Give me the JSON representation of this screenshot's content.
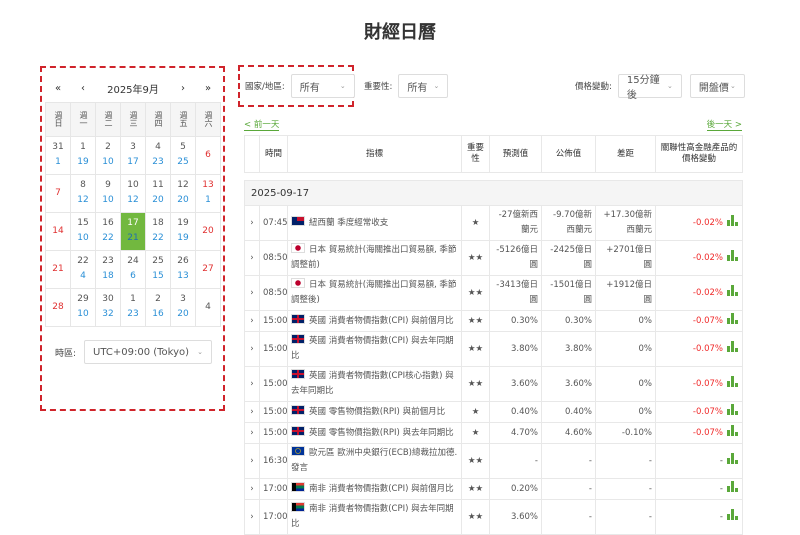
{
  "page_title": "財經日曆",
  "calendar": {
    "nav": {
      "prev_year": "«",
      "prev_month": "‹",
      "month_label": "2025年9月",
      "next_month": "›",
      "next_year": "»"
    },
    "weekdays": [
      "週日",
      "週一",
      "週二",
      "週三",
      "週四",
      "週五",
      "週六"
    ],
    "weeks": [
      [
        {
          "d": "31",
          "c": "1"
        },
        {
          "d": "1",
          "c": "19"
        },
        {
          "d": "2",
          "c": "10"
        },
        {
          "d": "3",
          "c": "17"
        },
        {
          "d": "4",
          "c": "23"
        },
        {
          "d": "5",
          "c": "25"
        },
        {
          "d": "6",
          "c": "",
          "weekend": true
        }
      ],
      [
        {
          "d": "7",
          "c": "",
          "weekend": true
        },
        {
          "d": "8",
          "c": "12"
        },
        {
          "d": "9",
          "c": "10"
        },
        {
          "d": "10",
          "c": "12"
        },
        {
          "d": "11",
          "c": "20"
        },
        {
          "d": "12",
          "c": "20"
        },
        {
          "d": "13",
          "c": "1",
          "weekend": true
        }
      ],
      [
        {
          "d": "14",
          "c": "",
          "weekend": true
        },
        {
          "d": "15",
          "c": "10"
        },
        {
          "d": "16",
          "c": "22"
        },
        {
          "d": "17",
          "c": "21",
          "selected": true
        },
        {
          "d": "18",
          "c": "22"
        },
        {
          "d": "19",
          "c": "19"
        },
        {
          "d": "20",
          "c": "",
          "weekend": true
        }
      ],
      [
        {
          "d": "21",
          "c": "",
          "weekend": true
        },
        {
          "d": "22",
          "c": "4"
        },
        {
          "d": "23",
          "c": "18"
        },
        {
          "d": "24",
          "c": "6"
        },
        {
          "d": "25",
          "c": "15"
        },
        {
          "d": "26",
          "c": "13"
        },
        {
          "d": "27",
          "c": "",
          "weekend": true
        }
      ],
      [
        {
          "d": "28",
          "c": "",
          "weekend": true
        },
        {
          "d": "29",
          "c": "10"
        },
        {
          "d": "30",
          "c": "32"
        },
        {
          "d": "1",
          "c": "23"
        },
        {
          "d": "2",
          "c": "16"
        },
        {
          "d": "3",
          "c": "20"
        },
        {
          "d": "4",
          "c": ""
        }
      ]
    ],
    "selected_color": "#72b83f",
    "timezone_label": "時區:",
    "timezone_value": "UTC+09:00 (Tokyo)"
  },
  "filters": {
    "country_label": "國家/地區:",
    "country_value": "所有",
    "importance_label": "重要性:",
    "importance_value": "所有",
    "price_label": "價格變動:",
    "price_value": "15分鐘後",
    "price_type_value": "開盤價"
  },
  "nav_links": {
    "prev_day": "< 前一天",
    "next_day": "後一天 >"
  },
  "table": {
    "headers": [
      "",
      "時間",
      "指標",
      "重要性",
      "預測值",
      "公佈值",
      "差距",
      "關聯性高金融產品的價格變動"
    ],
    "date": "2025-09-17",
    "rows": [
      {
        "time": "07:45",
        "flag": "nz",
        "indicator": "紐西蘭 季度經常收支",
        "stars": "★",
        "forecast": "-27億新西蘭元",
        "actual": "-9.70億新西蘭元",
        "diff": "+17.30億新西蘭元",
        "diff_sign": "pos",
        "change": "-0.02%"
      },
      {
        "time": "08:50",
        "flag": "jp",
        "indicator": "日本 貿易統計(海關推出口貿易額, 季節調整前)",
        "stars": "★★",
        "forecast": "-5126億日圓",
        "actual": "-2425億日圓",
        "diff": "+2701億日圓",
        "diff_sign": "pos",
        "change": "-0.02%"
      },
      {
        "time": "08:50",
        "flag": "jp",
        "indicator": "日本 貿易統計(海關推出口貿易額, 季節調整後)",
        "stars": "★★",
        "forecast": "-3413億日圓",
        "actual": "-1501億日圓",
        "diff": "+1912億日圓",
        "diff_sign": "pos",
        "change": "-0.02%"
      },
      {
        "time": "15:00",
        "flag": "uk",
        "indicator": "英國 消費者物價指數(CPI) 與前個月比",
        "stars": "★★",
        "forecast": "0.30%",
        "actual": "0.30%",
        "diff": "0%",
        "diff_sign": "",
        "change": "-0.07%"
      },
      {
        "time": "15:00",
        "flag": "uk",
        "indicator": "英國 消費者物價指數(CPI) 與去年同期比",
        "stars": "★★",
        "forecast": "3.80%",
        "actual": "3.80%",
        "diff": "0%",
        "diff_sign": "",
        "change": "-0.07%"
      },
      {
        "time": "15:00",
        "flag": "uk",
        "indicator": "英國 消費者物價指數(CPI核心指數) 與去年同期比",
        "stars": "★★",
        "forecast": "3.60%",
        "actual": "3.60%",
        "diff": "0%",
        "diff_sign": "",
        "change": "-0.07%"
      },
      {
        "time": "15:00",
        "flag": "uk",
        "indicator": "英國 零售物價指數(RPI) 與前個月比",
        "stars": "★",
        "forecast": "0.40%",
        "actual": "0.40%",
        "diff": "0%",
        "diff_sign": "",
        "change": "-0.07%"
      },
      {
        "time": "15:00",
        "flag": "uk",
        "indicator": "英國 零售物價指數(RPI) 與去年同期比",
        "stars": "★",
        "forecast": "4.70%",
        "actual": "4.60%",
        "diff": "-0.10%",
        "diff_sign": "neg",
        "change": "-0.07%"
      },
      {
        "time": "16:30",
        "flag": "eu",
        "indicator": "歐元區 歐洲中央銀行(ECB)總裁拉加德. 發言",
        "stars": "★★",
        "forecast": "-",
        "actual": "-",
        "diff": "-",
        "diff_sign": "",
        "change": "-"
      },
      {
        "time": "17:00",
        "flag": "za",
        "indicator": "南非 消費者物價指數(CPI) 與前個月比",
        "stars": "★★",
        "forecast": "0.20%",
        "actual": "-",
        "diff": "-",
        "diff_sign": "",
        "change": "-"
      },
      {
        "time": "17:00",
        "flag": "za",
        "indicator": "南非 消費者物價指數(CPI) 與去年同期比",
        "stars": "★★",
        "forecast": "3.60%",
        "actual": "-",
        "diff": "-",
        "diff_sign": "",
        "change": "-"
      }
    ]
  }
}
